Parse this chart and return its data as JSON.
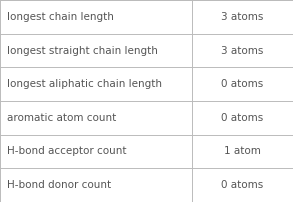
{
  "rows": [
    [
      "longest chain length",
      "3 atoms"
    ],
    [
      "longest straight chain length",
      "3 atoms"
    ],
    [
      "longest aliphatic chain length",
      "0 atoms"
    ],
    [
      "aromatic atom count",
      "0 atoms"
    ],
    [
      "H-bond acceptor count",
      "1 atom"
    ],
    [
      "H-bond donor count",
      "0 atoms"
    ]
  ],
  "col_split": 0.655,
  "bg_color": "#ffffff",
  "border_color": "#bbbbbb",
  "text_color": "#555555",
  "font_size": 7.5,
  "fig_width": 2.93,
  "fig_height": 2.02,
  "dpi": 100
}
